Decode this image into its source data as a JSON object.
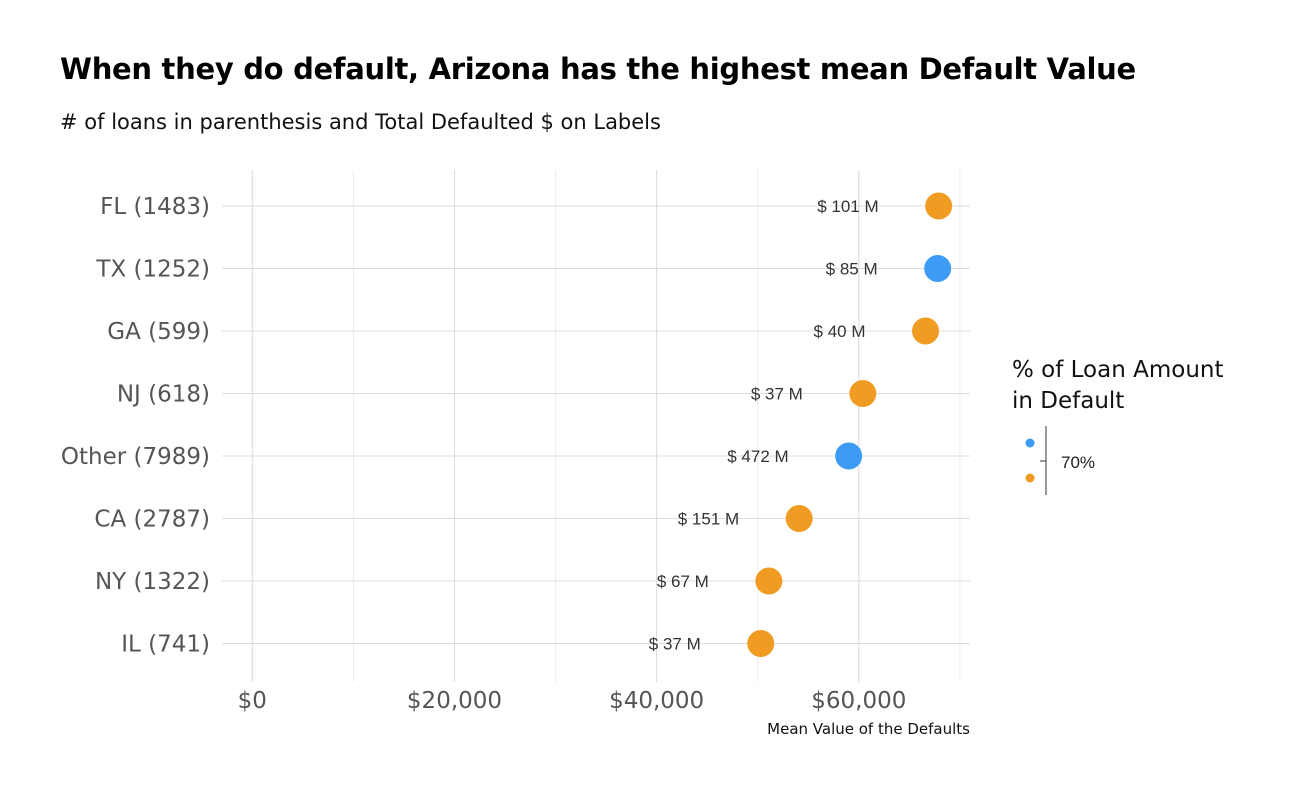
{
  "chart_data": {
    "type": "scatter",
    "title": "When they do default, Arizona has the highest mean Default Value",
    "subtitle": "# of loans in parenthesis and Total Defaulted $ on Labels",
    "xlabel": "Mean Value of the Defaults",
    "ylabel": "",
    "xlim": [
      -3000,
      71000
    ],
    "x_ticks": [
      0,
      20000,
      40000,
      60000
    ],
    "x_tick_labels": [
      "$0",
      "$20,000",
      "$40,000",
      "$60,000"
    ],
    "grid": true,
    "categories": [
      "FL (1483)",
      "TX (1252)",
      "GA (599)",
      "NJ (618)",
      "Other (7989)",
      "CA (2787)",
      "NY (1322)",
      "IL (741)"
    ],
    "x": [
      67900,
      67800,
      66600,
      60400,
      59000,
      54100,
      51100,
      50300
    ],
    "labels": [
      "$ 101 M",
      "$ 85 M",
      "$ 40 M",
      "$ 37 M",
      "$ 472 M",
      "$ 151 M",
      "$ 67 M",
      "$ 37 M"
    ],
    "pct_in_default": [
      0.6,
      0.72,
      0.6,
      0.6,
      0.72,
      0.6,
      0.6,
      0.6
    ],
    "legend": {
      "title_lines": [
        "% of Loan Amount",
        "in Default"
      ],
      "tick_label": "70%",
      "placement": "right",
      "colors": [
        "#3d9bf5",
        "#f09c22"
      ]
    }
  }
}
